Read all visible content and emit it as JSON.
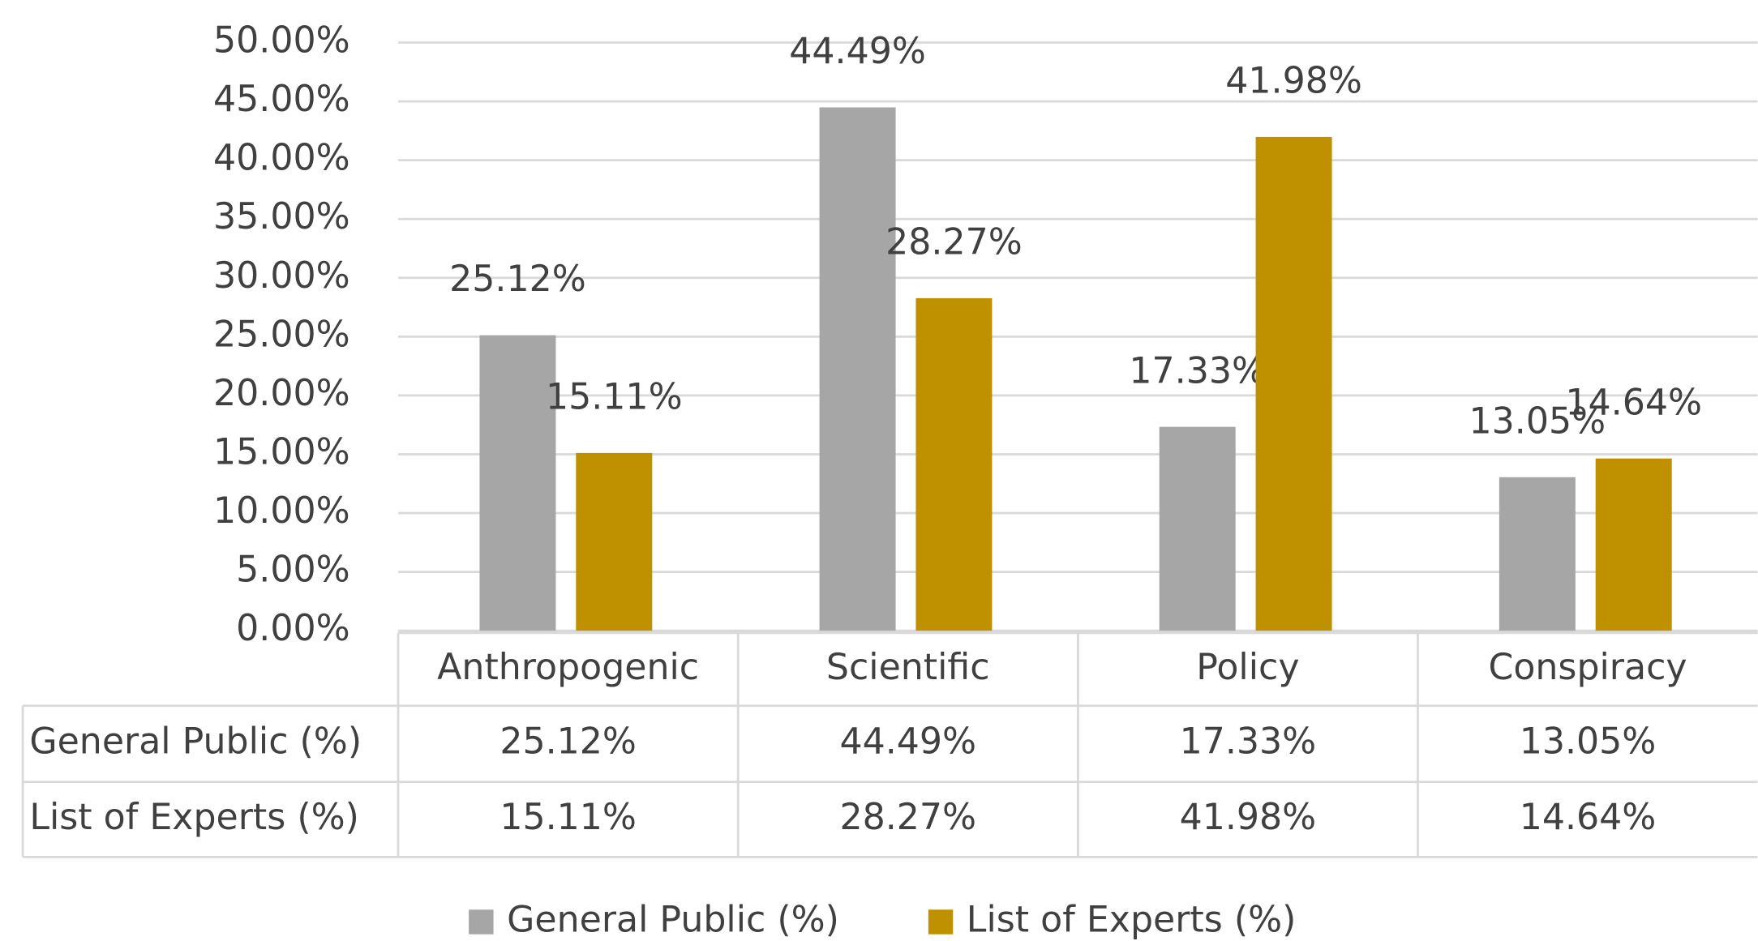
{
  "chart_data": {
    "type": "bar",
    "categories": [
      "Anthropogenic",
      "Scientific",
      "Policy",
      "Conspiracy"
    ],
    "series": [
      {
        "name": "General Public (%)",
        "color": "#a6a6a6",
        "values": [
          25.12,
          44.49,
          17.33,
          13.05
        ],
        "value_labels": [
          "25.12%",
          "44.49%",
          "17.33%",
          "13.05%"
        ]
      },
      {
        "name": "List of Experts (%)",
        "color": "#bf9000",
        "values": [
          15.11,
          28.27,
          41.98,
          14.64
        ],
        "value_labels": [
          "15.11%",
          "28.27%",
          "41.98%",
          "14.64%"
        ]
      }
    ],
    "ylim": [
      0,
      50
    ],
    "yticks": [
      {
        "value": 0,
        "label": "0.00%"
      },
      {
        "value": 5,
        "label": "5.00%"
      },
      {
        "value": 10,
        "label": "10.00%"
      },
      {
        "value": 15,
        "label": "15.00%"
      },
      {
        "value": 20,
        "label": "20.00%"
      },
      {
        "value": 25,
        "label": "25.00%"
      },
      {
        "value": 30,
        "label": "30.00%"
      },
      {
        "value": 35,
        "label": "35.00%"
      },
      {
        "value": 40,
        "label": "40.00%"
      },
      {
        "value": 45,
        "label": "45.00%"
      },
      {
        "value": 50,
        "label": "50.00%"
      }
    ],
    "grid": true,
    "data_table": true,
    "legend": "bottom"
  }
}
